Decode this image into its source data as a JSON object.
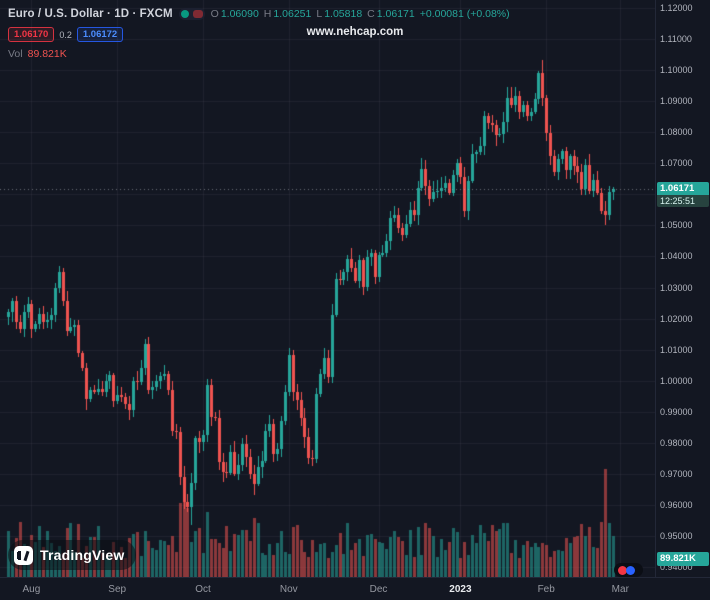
{
  "header": {
    "symbol_title": "Euro / U.S. Dollar · 1D · FXCM",
    "ohlc": {
      "o_label": "O",
      "o": "1.06090",
      "h_label": "H",
      "h": "1.06251",
      "l_label": "L",
      "l": "1.05818",
      "c_label": "C",
      "c": "1.06171",
      "change": "+0.00081 (+0.08%)"
    },
    "bid": "1.06170",
    "spread": "0.2",
    "ask": "1.06172",
    "vol_label": "Vol",
    "vol_value": "89.821K"
  },
  "watermark": "www.nehcap.com",
  "badges": {
    "last_price": "1.06171",
    "countdown": "12:25:51",
    "volume": "89.821K"
  },
  "logo": {
    "text": "TradingView"
  },
  "price_axis": {
    "labels": [
      "1.12000",
      "1.11000",
      "1.10000",
      "1.09000",
      "1.08000",
      "1.07000",
      "1.06000",
      "1.05000",
      "1.04000",
      "1.03000",
      "1.02000",
      "1.01000",
      "1.00000",
      "0.99000",
      "0.98000",
      "0.97000",
      "0.96000",
      "0.95000",
      "0.94000"
    ]
  },
  "time_axis": {
    "labels": [
      {
        "text": "Aug",
        "index": 6,
        "highlight": false
      },
      {
        "text": "Sep",
        "index": 28,
        "highlight": false
      },
      {
        "text": "Oct",
        "index": 50,
        "highlight": false
      },
      {
        "text": "Nov",
        "index": 72,
        "highlight": false
      },
      {
        "text": "Dec",
        "index": 95,
        "highlight": false
      },
      {
        "text": "2023",
        "index": 116,
        "highlight": true
      },
      {
        "text": "Feb",
        "index": 138,
        "highlight": false
      },
      {
        "text": "Mar",
        "index": 157,
        "highlight": false
      }
    ]
  },
  "chart_data": {
    "type": "candlestick",
    "symbol": "EUR/USD",
    "timeframe": "1D",
    "exchange": "FXCM",
    "price_range": [
      0.94,
      1.12
    ],
    "grid": true,
    "colors": {
      "up": "#26a69a",
      "down": "#ef5350",
      "vol_up": "rgba(38,166,154,0.55)",
      "vol_down": "rgba(239,83,80,0.55)"
    },
    "first_open": 1.0205,
    "closes": [
      1.0221,
      1.0257,
      1.019,
      1.0166,
      1.022,
      1.0247,
      1.0165,
      1.0184,
      1.0216,
      1.019,
      1.0196,
      1.0213,
      1.0298,
      1.0349,
      1.0258,
      1.016,
      1.0172,
      1.0178,
      1.0088,
      1.004,
      0.994,
      0.9971,
      0.9965,
      0.9973,
      0.9962,
      0.9998,
      1.0017,
      0.9935,
      0.9955,
      0.9948,
      0.9925,
      0.9905,
      0.9998,
      0.9995,
      1.0041,
      1.0119,
      0.997,
      0.9979,
      0.9998,
      1.0016,
      1.0023,
      0.997,
      0.9838,
      0.9835,
      0.969,
      0.9609,
      0.9594,
      0.967,
      0.9815,
      0.9802,
      0.9826,
      0.9985,
      0.9883,
      0.9881,
      0.9737,
      0.9706,
      0.9702,
      0.977,
      0.97,
      0.9727,
      0.9797,
      0.9754,
      0.97,
      0.9668,
      0.9721,
      0.9741,
      0.9839,
      0.9862,
      0.9764,
      0.978,
      0.9869,
      0.9963,
      1.0082,
      0.9962,
      0.9938,
      0.9881,
      0.9817,
      0.975,
      0.9748,
      0.9957,
      1.002,
      1.0074,
      1.0013,
      1.021,
      1.0327,
      1.0325,
      1.035,
      1.0393,
      1.0363,
      1.0322,
      1.0388,
      1.0302,
      1.0397,
      1.041,
      1.0335,
      1.0405,
      1.041,
      1.045,
      1.0525,
      1.0535,
      1.049,
      1.0469,
      1.0505,
      1.055,
      1.0532,
      1.0621,
      1.0682,
      1.0628,
      1.0585,
      1.0608,
      1.061,
      1.0622,
      1.0638,
      1.0604,
      1.0663,
      1.0702,
      1.0655,
      1.0546,
      1.0644,
      1.0729,
      1.0735,
      1.0756,
      1.0853,
      1.083,
      1.0822,
      1.0791,
      1.0794,
      1.0833,
      1.0911,
      1.0887,
      1.0916,
      1.0865,
      1.0889,
      1.0852,
      1.0866,
      1.0907,
      1.099,
      1.0911,
      1.0796,
      1.0725,
      1.0672,
      1.0714,
      1.0738,
      1.0679,
      1.0722,
      1.069,
      1.0673,
      1.0618,
      1.0695,
      1.0612,
      1.0647,
      1.0605,
      1.0547,
      1.0533,
      1.0609,
      1.06171
    ],
    "last": {
      "open": 1.0609,
      "high": 1.06251,
      "low": 1.05818,
      "close": 1.06171
    },
    "wick_overrides": {
      "13": {
        "high": 1.0369
      },
      "47": {
        "low": 0.9536
      },
      "137": {
        "high": 1.1033
      },
      "155": {
        "high": 1.06251,
        "low": 1.05818
      }
    },
    "volume_range_k": [
      40,
      120
    ],
    "last_volume_k": 89.821,
    "volume_overrides": {
      "44": 160,
      "45": 172,
      "46": 150,
      "51": 142,
      "63": 128,
      "152": 120,
      "153": 235,
      "155": 89.821
    }
  }
}
